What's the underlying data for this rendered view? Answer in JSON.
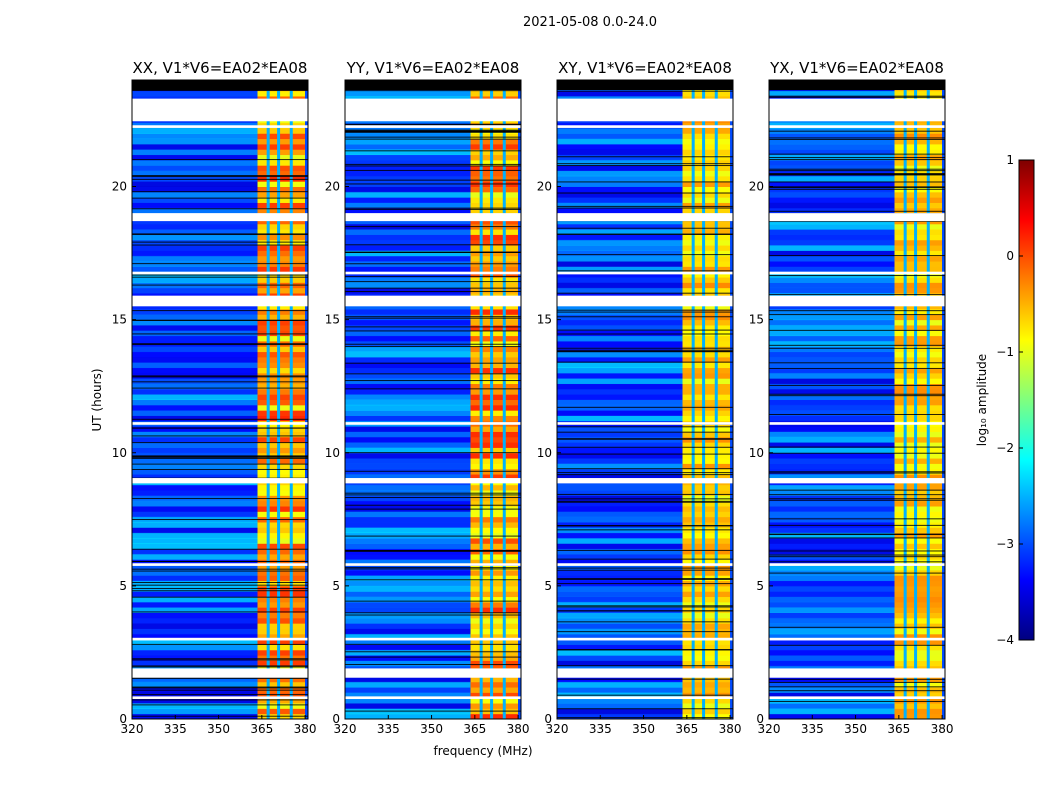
{
  "figure": {
    "title": "2021-05-08 0.0-24.0"
  },
  "chart_data": {
    "type": "heatmap",
    "panels": [
      {
        "title": "XX, V1*V6=EA02*EA08"
      },
      {
        "title": "YY, V1*V6=EA02*EA08"
      },
      {
        "title": "XY, V1*V6=EA02*EA08"
      },
      {
        "title": "YX, V1*V6=EA02*EA08"
      }
    ],
    "xlabel": "frequency (MHz)",
    "ylabel": "UT (hours)",
    "xlim": [
      320,
      381
    ],
    "ylim": [
      0,
      24
    ],
    "xticks": [
      320,
      335,
      350,
      365,
      380
    ],
    "yticks": [
      0,
      5,
      10,
      15,
      20
    ],
    "rfi_band_mhz": [
      363.5,
      380
    ],
    "rfi_channel_gaps_mhz": [
      367.2,
      370.8,
      375.2
    ],
    "flagged_gaps_hours": [
      [
        0.75,
        0.85
      ],
      [
        1.55,
        1.9
      ],
      [
        2.95,
        3.05
      ],
      [
        5.75,
        5.85
      ],
      [
        8.85,
        9.05
      ],
      [
        11.05,
        11.15
      ],
      [
        15.5,
        15.9
      ],
      [
        16.7,
        16.8
      ],
      [
        18.7,
        19.0
      ],
      [
        22.2,
        22.3
      ],
      [
        22.45,
        23.3
      ]
    ],
    "colorbar": {
      "label": "log₁₀ amplitude",
      "ticks": [
        1,
        0,
        -1,
        -2,
        -3,
        -4
      ],
      "min": -4,
      "max": 1,
      "colormap": [
        "#00007f",
        "#0000ff",
        "#007fff",
        "#00ffff",
        "#7fff7f",
        "#ffff00",
        "#ff7f00",
        "#ff0000",
        "#7f0000"
      ]
    }
  }
}
